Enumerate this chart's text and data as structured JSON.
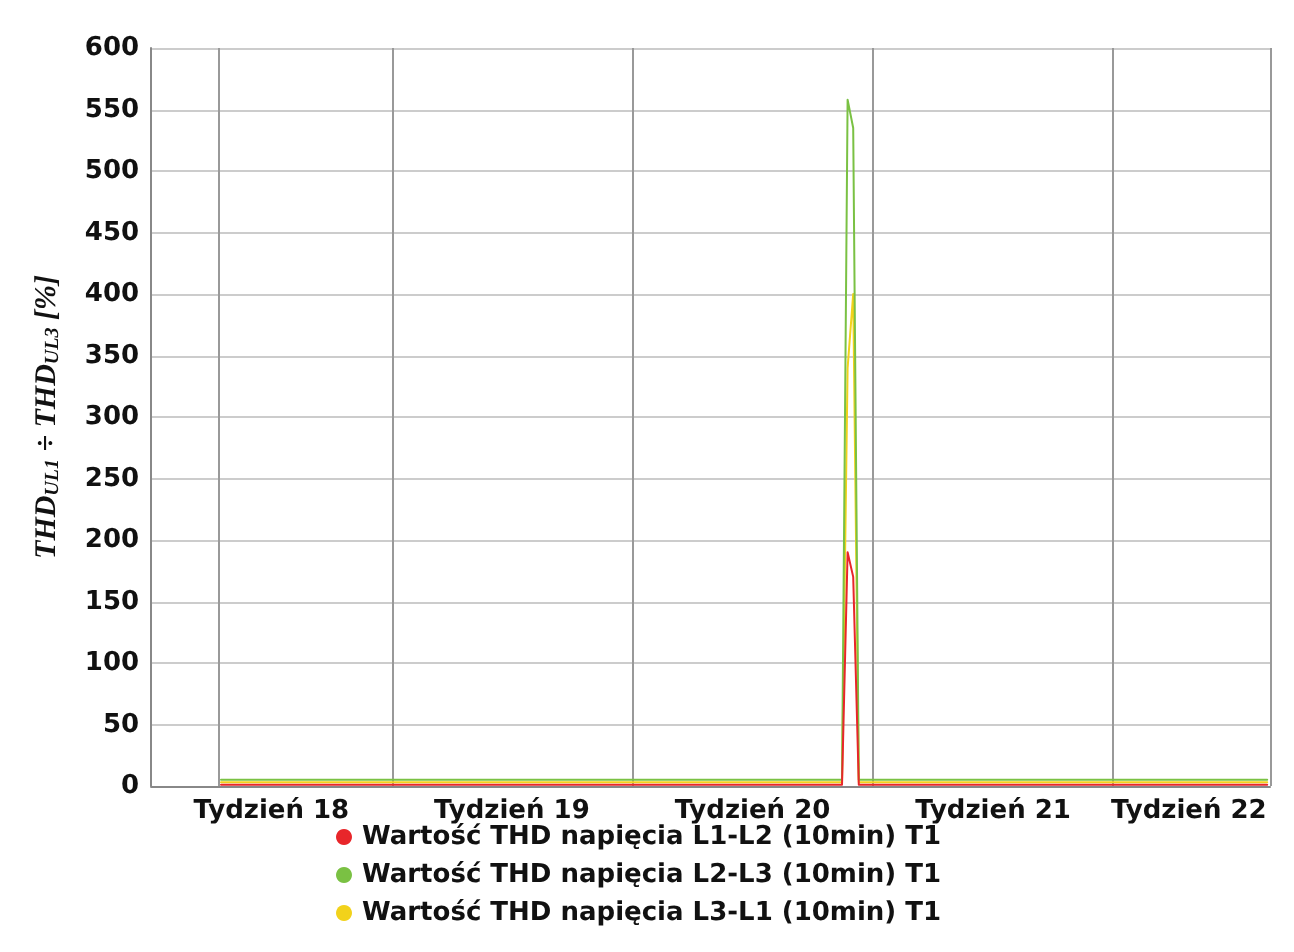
{
  "chart_data": {
    "type": "line",
    "ylabel": "THD$_{UL1}$ ÷ THD$_{UL3}$ [%]",
    "categories": [
      null,
      null,
      null,
      null,
      null,
      null,
      null,
      null,
      null,
      null,
      null,
      null,
      null,
      null,
      null,
      null,
      null,
      null,
      null,
      null,
      null,
      "Tydzień 18",
      null,
      null,
      null,
      null,
      null,
      null,
      null,
      null,
      null,
      null,
      null,
      null,
      null,
      null,
      null,
      null,
      null,
      null,
      null,
      null,
      null,
      null,
      null,
      null,
      null,
      null,
      null,
      null,
      null,
      null,
      null,
      null,
      null,
      null,
      null,
      null,
      null,
      null,
      null,
      null,
      null,
      null,
      "Tydzień 19",
      null,
      null,
      null,
      null,
      null,
      null,
      null,
      null,
      null,
      null,
      null,
      null,
      null,
      null,
      null,
      null,
      null,
      null,
      null,
      null,
      null,
      null,
      null,
      null,
      null,
      null,
      null,
      null,
      null,
      null,
      null,
      null,
      null,
      null,
      null,
      null,
      null,
      null,
      null,
      null,
      null,
      null,
      "Tydzień 20",
      null,
      null,
      null,
      null,
      null,
      null,
      null,
      null,
      null,
      null,
      null,
      null,
      null,
      null,
      null,
      null,
      null,
      null,
      null,
      null,
      null,
      null,
      null,
      null,
      null,
      null,
      null,
      null,
      null,
      null,
      null,
      null,
      null,
      null,
      null,
      null,
      null,
      null,
      null,
      null,
      null,
      null,
      "Tydzień 21",
      null,
      null,
      null,
      null,
      null,
      null,
      null,
      null,
      null,
      null,
      null,
      null,
      null,
      null,
      null,
      null,
      null,
      null,
      null,
      null,
      null,
      null,
      null,
      null,
      null,
      null,
      null,
      null,
      null,
      null,
      null,
      null,
      null,
      null,
      "Tydzień 22",
      null,
      null,
      null,
      null,
      null,
      null,
      null,
      null,
      null,
      null,
      null,
      null,
      null,
      null
    ],
    "ylim": [
      0,
      600
    ],
    "yticks": [
      0,
      50,
      100,
      150,
      200,
      250,
      300,
      350,
      400,
      450,
      500,
      550,
      600
    ],
    "grid": true,
    "legend": "bottom",
    "marker": "none",
    "line_style": "solid",
    "series": [
      {
        "name": "Wartość THD napięcia L1-L2 (10min) T1",
        "color": "#e8262a",
        "values": [
          null,
          null,
          null,
          null,
          null,
          null,
          null,
          null,
          null,
          null,
          null,
          null,
          1,
          1,
          1,
          1,
          1,
          1,
          1,
          1,
          1,
          1,
          1,
          1,
          1,
          1,
          1,
          1,
          1,
          1,
          1,
          1,
          1,
          1,
          1,
          1,
          1,
          1,
          1,
          1,
          1,
          1,
          1,
          1,
          1,
          1,
          1,
          1,
          1,
          1,
          1,
          1,
          1,
          1,
          1,
          1,
          1,
          1,
          1,
          1,
          1,
          1,
          1,
          1,
          1,
          1,
          1,
          1,
          1,
          1,
          1,
          1,
          1,
          1,
          1,
          1,
          1,
          1,
          1,
          1,
          1,
          1,
          1,
          1,
          1,
          1,
          1,
          1,
          1,
          1,
          1,
          1,
          1,
          1,
          1,
          1,
          1,
          1,
          1,
          1,
          1,
          1,
          1,
          1,
          1,
          1,
          1,
          1,
          1,
          1,
          1,
          1,
          1,
          1,
          1,
          1,
          1,
          1,
          1,
          1,
          1,
          1,
          1,
          1,
          190,
          170,
          1,
          1,
          1,
          1,
          1,
          1,
          1,
          1,
          1,
          1,
          1,
          1,
          1,
          1,
          1,
          1,
          1,
          1,
          1,
          1,
          1,
          1,
          1,
          1,
          1,
          1,
          1,
          1,
          1,
          1,
          1,
          1,
          1,
          1,
          1,
          1,
          1,
          1,
          1,
          1,
          1,
          1,
          1,
          1,
          1,
          1,
          1,
          1,
          1,
          1,
          1,
          1,
          1,
          1,
          1,
          1,
          1,
          1,
          1,
          1,
          1,
          1,
          1,
          1,
          1,
          1,
          1,
          1,
          1,
          1,
          1,
          1,
          1,
          1
        ]
      },
      {
        "name": "Wartość THD napięcia L2-L3 (10min) T1",
        "color": "#7ac143",
        "values": [
          null,
          null,
          null,
          null,
          null,
          null,
          null,
          null,
          null,
          null,
          null,
          null,
          5,
          5,
          5,
          5,
          5,
          5,
          5,
          5,
          5,
          5,
          5,
          5,
          5,
          5,
          5,
          5,
          5,
          5,
          5,
          5,
          5,
          5,
          5,
          5,
          5,
          5,
          5,
          5,
          5,
          5,
          5,
          5,
          5,
          5,
          5,
          5,
          5,
          5,
          5,
          5,
          5,
          5,
          5,
          5,
          5,
          5,
          5,
          5,
          5,
          5,
          5,
          5,
          5,
          5,
          5,
          5,
          5,
          5,
          5,
          5,
          5,
          5,
          5,
          5,
          5,
          5,
          5,
          5,
          5,
          5,
          5,
          5,
          5,
          5,
          5,
          5,
          5,
          5,
          5,
          5,
          5,
          5,
          5,
          5,
          5,
          5,
          5,
          5,
          5,
          5,
          5,
          5,
          5,
          5,
          5,
          5,
          5,
          5,
          5,
          5,
          5,
          5,
          5,
          5,
          5,
          5,
          5,
          5,
          5,
          5,
          5,
          5,
          558,
          535,
          5,
          5,
          5,
          5,
          5,
          5,
          5,
          5,
          5,
          5,
          5,
          5,
          5,
          5,
          5,
          5,
          5,
          5,
          5,
          5,
          5,
          5,
          5,
          5,
          5,
          5,
          5,
          5,
          5,
          5,
          5,
          5,
          5,
          5,
          5,
          5,
          5,
          5,
          5,
          5,
          5,
          5,
          5,
          5,
          5,
          5,
          5,
          5,
          5,
          5,
          5,
          5,
          5,
          5,
          5,
          5,
          5,
          5,
          5,
          5,
          5,
          5,
          5,
          5,
          5,
          5,
          5,
          5,
          5,
          5,
          5,
          5,
          5,
          5
        ]
      },
      {
        "name": "Wartość THD napięcia L3-L1 (10min) T1",
        "color": "#f2d21b",
        "values": [
          null,
          null,
          null,
          null,
          null,
          null,
          null,
          null,
          null,
          null,
          null,
          null,
          3,
          3,
          3,
          3,
          3,
          3,
          3,
          3,
          3,
          3,
          3,
          3,
          3,
          3,
          3,
          3,
          3,
          3,
          3,
          3,
          3,
          3,
          3,
          3,
          3,
          3,
          3,
          3,
          3,
          3,
          3,
          3,
          3,
          3,
          3,
          3,
          3,
          3,
          3,
          3,
          3,
          3,
          3,
          3,
          3,
          3,
          3,
          3,
          3,
          3,
          3,
          3,
          3,
          3,
          3,
          3,
          3,
          3,
          3,
          3,
          3,
          3,
          3,
          3,
          3,
          3,
          3,
          3,
          3,
          3,
          3,
          3,
          3,
          3,
          3,
          3,
          3,
          3,
          3,
          3,
          3,
          3,
          3,
          3,
          3,
          3,
          3,
          3,
          3,
          3,
          3,
          3,
          3,
          3,
          3,
          3,
          3,
          3,
          3,
          3,
          3,
          3,
          3,
          3,
          3,
          3,
          3,
          3,
          3,
          3,
          3,
          3,
          340,
          400,
          3,
          3,
          3,
          3,
          3,
          3,
          3,
          3,
          3,
          3,
          3,
          3,
          3,
          3,
          3,
          3,
          3,
          3,
          3,
          3,
          3,
          3,
          3,
          3,
          3,
          3,
          3,
          3,
          3,
          3,
          3,
          3,
          3,
          3,
          3,
          3,
          3,
          3,
          3,
          3,
          3,
          3,
          3,
          3,
          3,
          3,
          3,
          3,
          3,
          3,
          3,
          3,
          3,
          3,
          3,
          3,
          3,
          3,
          3,
          3,
          3,
          3,
          3,
          3,
          3,
          3,
          3,
          3,
          3,
          3,
          3,
          3,
          3,
          3
        ]
      }
    ]
  }
}
